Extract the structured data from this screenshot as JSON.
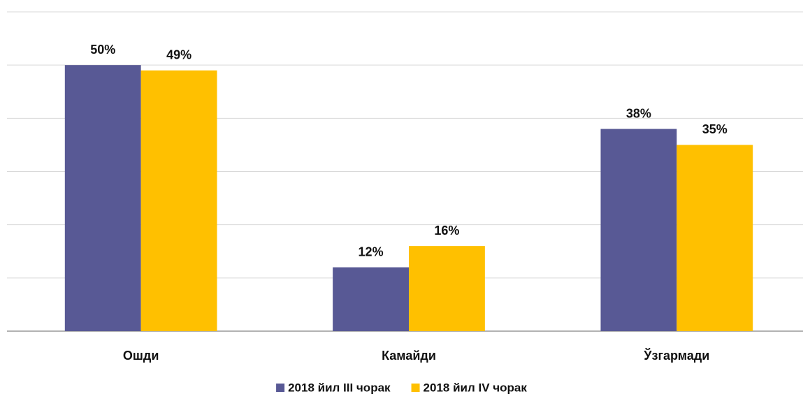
{
  "chart_data": {
    "type": "bar",
    "categories": [
      "Ошди",
      "Камайди",
      "Ўзгармади"
    ],
    "series": [
      {
        "name": "2018 йил III чорак",
        "color": "#585995",
        "values": [
          50,
          12,
          38
        ],
        "value_labels": [
          "50%",
          "12%",
          "38%"
        ]
      },
      {
        "name": "2018 йил IV чорак",
        "color": "#ffc000",
        "values": [
          49,
          16,
          35
        ],
        "value_labels": [
          "49%",
          "16%",
          "35%"
        ]
      }
    ],
    "ylim": [
      0,
      60
    ],
    "yticks": [
      0,
      10,
      20,
      30,
      40,
      50,
      60
    ],
    "grid": true,
    "legend": "bottom"
  }
}
